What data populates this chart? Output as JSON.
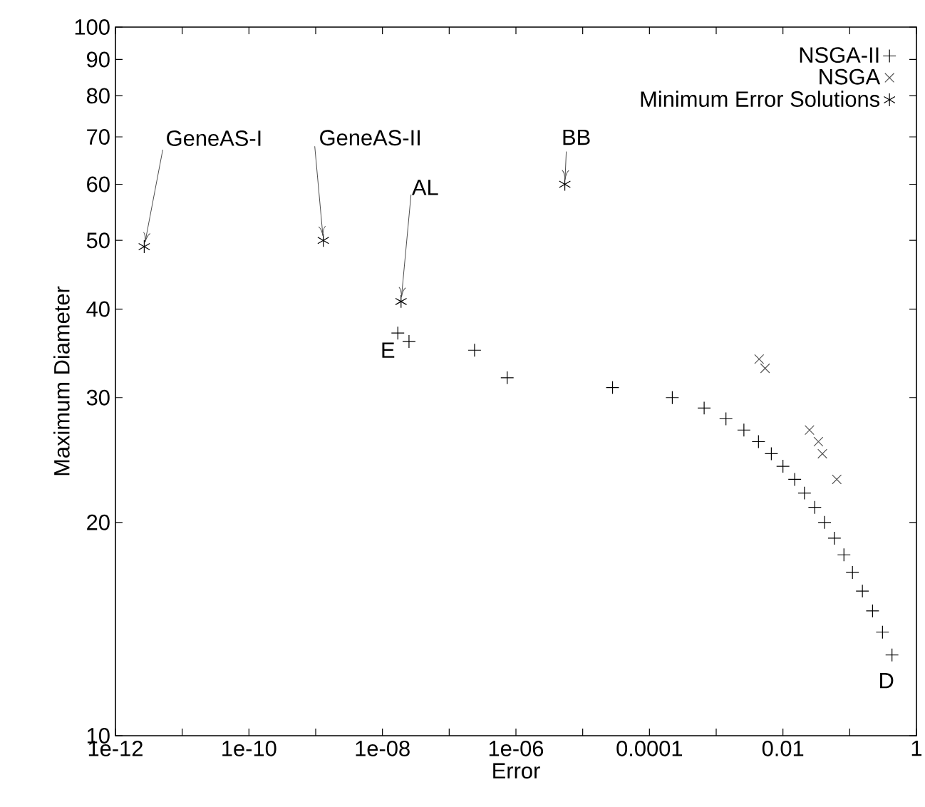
{
  "chart_data": {
    "type": "scatter",
    "xlabel": "Error",
    "ylabel": "Maximum Diameter",
    "log": "xy",
    "legend": "top right",
    "grid": false,
    "xlim": [
      1e-12,
      1
    ],
    "ylim": [
      10,
      100
    ],
    "xticks": [
      {
        "value": 1e-12,
        "label": "1e-12"
      },
      {
        "value": 1e-11,
        "label": null
      },
      {
        "value": 1e-10,
        "label": "1e-10"
      },
      {
        "value": 1e-09,
        "label": null
      },
      {
        "value": 1e-08,
        "label": "1e-08"
      },
      {
        "value": 1e-07,
        "label": null
      },
      {
        "value": 1e-06,
        "label": "1e-06"
      },
      {
        "value": 1e-05,
        "label": null
      },
      {
        "value": 0.0001,
        "label": "0.0001"
      },
      {
        "value": 0.001,
        "label": null
      },
      {
        "value": 0.01,
        "label": "0.01"
      },
      {
        "value": 0.1,
        "label": null
      },
      {
        "value": 1,
        "label": "1"
      }
    ],
    "yticks": [
      10,
      20,
      30,
      40,
      50,
      60,
      70,
      80,
      90,
      100
    ],
    "series": [
      {
        "name": "NSGA-II",
        "color": "#000000",
        "marker": "plus",
        "x": [
          1.7e-08,
          2.5e-08,
          2.4e-07,
          7.4e-07,
          2.8e-05,
          0.00022,
          0.00066,
          0.0014,
          0.0026,
          0.0043,
          0.0067,
          0.01,
          0.015,
          0.021,
          0.03,
          0.042,
          0.059,
          0.082,
          0.11,
          0.155,
          0.22,
          0.31,
          0.43
        ],
        "values": [
          37,
          36,
          35,
          32,
          31,
          30,
          29,
          28,
          27,
          26,
          25,
          24,
          23,
          22,
          21,
          20,
          19,
          18,
          17,
          16,
          15,
          14,
          13
        ]
      },
      {
        "name": "NSGA",
        "color": "#555555",
        "marker": "cross",
        "x": [
          0.0044,
          0.0054,
          0.025,
          0.034,
          0.039,
          0.064
        ],
        "values": [
          34,
          33,
          27,
          26,
          25,
          23
        ]
      },
      {
        "name": "Minimum Error Solutions",
        "color": "#000000",
        "x": [
          2.7e-12,
          1.3e-09,
          1.9e-08,
          5.4e-06
        ],
        "values": [
          49,
          50,
          41,
          60
        ]
      }
    ],
    "annotations": [
      {
        "text": "GeneAS-I",
        "x": 2.7e-12,
        "y": 49
      },
      {
        "text": "GeneAS-II",
        "x": 1.3e-09,
        "y": 50
      },
      {
        "text": "AL",
        "x": 1.9e-08,
        "y": 41
      },
      {
        "text": "BB",
        "x": 5.4e-06,
        "y": 60
      },
      {
        "text": "E",
        "x": 1.7e-08,
        "y": 37
      },
      {
        "text": "D",
        "x": 0.43,
        "y": 13
      }
    ]
  }
}
